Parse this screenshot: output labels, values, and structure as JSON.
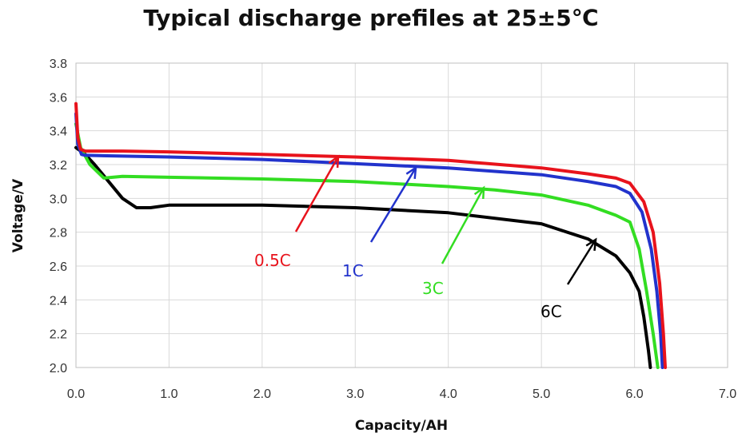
{
  "chart_data": {
    "type": "line",
    "title": "Typical discharge prefiles at 25±5℃",
    "xlabel": "Capacity/AH",
    "ylabel": "Voltage/V",
    "xlim": [
      0,
      7
    ],
    "ylim": [
      2.0,
      3.8
    ],
    "xticks": [
      "0.0",
      "1.0",
      "2.0",
      "3.0",
      "4.0",
      "5.0",
      "6.0",
      "7.0"
    ],
    "yticks": [
      "2.0",
      "2.2",
      "2.4",
      "2.6",
      "2.8",
      "3.0",
      "3.2",
      "3.4",
      "3.6",
      "3.8"
    ],
    "grid": true,
    "series": [
      {
        "name": "0.5C",
        "color": "#e8131c",
        "points": [
          [
            0,
            3.56
          ],
          [
            0.02,
            3.36
          ],
          [
            0.05,
            3.29
          ],
          [
            0.1,
            3.28
          ],
          [
            0.5,
            3.28
          ],
          [
            1,
            3.275
          ],
          [
            2,
            3.26
          ],
          [
            3,
            3.245
          ],
          [
            4,
            3.225
          ],
          [
            5,
            3.18
          ],
          [
            5.5,
            3.145
          ],
          [
            5.8,
            3.12
          ],
          [
            5.95,
            3.09
          ],
          [
            6.1,
            2.98
          ],
          [
            6.2,
            2.8
          ],
          [
            6.27,
            2.5
          ],
          [
            6.31,
            2.2
          ],
          [
            6.33,
            2.0
          ]
        ]
      },
      {
        "name": "1C",
        "color": "#2233cc",
        "points": [
          [
            0,
            3.5
          ],
          [
            0.02,
            3.32
          ],
          [
            0.06,
            3.26
          ],
          [
            0.1,
            3.255
          ],
          [
            0.5,
            3.25
          ],
          [
            1,
            3.245
          ],
          [
            2,
            3.23
          ],
          [
            3,
            3.205
          ],
          [
            4,
            3.18
          ],
          [
            5,
            3.14
          ],
          [
            5.5,
            3.1
          ],
          [
            5.8,
            3.07
          ],
          [
            5.95,
            3.03
          ],
          [
            6.08,
            2.92
          ],
          [
            6.18,
            2.7
          ],
          [
            6.24,
            2.45
          ],
          [
            6.28,
            2.2
          ],
          [
            6.3,
            2.0
          ]
        ]
      },
      {
        "name": "3C",
        "color": "#33dd22",
        "points": [
          [
            0,
            3.44
          ],
          [
            0.05,
            3.3
          ],
          [
            0.15,
            3.2
          ],
          [
            0.3,
            3.12
          ],
          [
            0.5,
            3.13
          ],
          [
            1,
            3.125
          ],
          [
            2,
            3.115
          ],
          [
            3,
            3.1
          ],
          [
            4,
            3.07
          ],
          [
            4.5,
            3.05
          ],
          [
            5,
            3.02
          ],
          [
            5.5,
            2.96
          ],
          [
            5.8,
            2.9
          ],
          [
            5.95,
            2.86
          ],
          [
            6.05,
            2.7
          ],
          [
            6.13,
            2.45
          ],
          [
            6.2,
            2.2
          ],
          [
            6.25,
            2.0
          ]
        ]
      },
      {
        "name": "6C",
        "color": "#000000",
        "points": [
          [
            0,
            3.3
          ],
          [
            0.1,
            3.26
          ],
          [
            0.2,
            3.2
          ],
          [
            0.35,
            3.1
          ],
          [
            0.5,
            3.0
          ],
          [
            0.65,
            2.945
          ],
          [
            0.8,
            2.945
          ],
          [
            1,
            2.96
          ],
          [
            2,
            2.96
          ],
          [
            3,
            2.945
          ],
          [
            4,
            2.915
          ],
          [
            5,
            2.85
          ],
          [
            5.5,
            2.76
          ],
          [
            5.8,
            2.66
          ],
          [
            5.95,
            2.56
          ],
          [
            6.05,
            2.45
          ],
          [
            6.1,
            2.3
          ],
          [
            6.15,
            2.1
          ],
          [
            6.17,
            2.0
          ]
        ]
      }
    ],
    "annotations": [
      {
        "text": "0.5C",
        "color": "#e8131c"
      },
      {
        "text": "1C",
        "color": "#2233cc"
      },
      {
        "text": "3C",
        "color": "#33dd22"
      },
      {
        "text": "6C",
        "color": "#000000"
      }
    ]
  }
}
